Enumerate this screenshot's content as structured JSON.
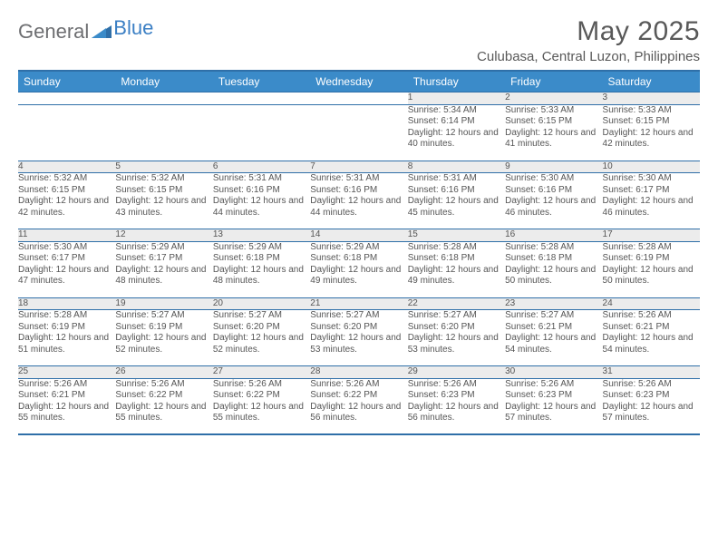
{
  "brand": {
    "text1": "General",
    "text2": "Blue"
  },
  "title": "May 2025",
  "location": "Culubasa, Central Luzon, Philippines",
  "colors": {
    "header_bg": "#3b8bc9",
    "header_text": "#ffffff",
    "border": "#2f6fa8",
    "daynum_bg": "#ececec",
    "body_text": "#555555",
    "brand_gray": "#6d6e71",
    "brand_blue": "#3b7fc4",
    "page_bg": "#ffffff"
  },
  "typography": {
    "title_fontsize": 30,
    "location_fontsize": 15,
    "header_fontsize": 12,
    "daynum_fontsize": 11,
    "cell_fontsize": 10
  },
  "daysOfWeek": [
    "Sunday",
    "Monday",
    "Tuesday",
    "Wednesday",
    "Thursday",
    "Friday",
    "Saturday"
  ],
  "weeks": [
    [
      null,
      null,
      null,
      null,
      {
        "n": "1",
        "sr": "5:34 AM",
        "ss": "6:14 PM",
        "dl": "12 hours and 40 minutes."
      },
      {
        "n": "2",
        "sr": "5:33 AM",
        "ss": "6:15 PM",
        "dl": "12 hours and 41 minutes."
      },
      {
        "n": "3",
        "sr": "5:33 AM",
        "ss": "6:15 PM",
        "dl": "12 hours and 42 minutes."
      }
    ],
    [
      {
        "n": "4",
        "sr": "5:32 AM",
        "ss": "6:15 PM",
        "dl": "12 hours and 42 minutes."
      },
      {
        "n": "5",
        "sr": "5:32 AM",
        "ss": "6:15 PM",
        "dl": "12 hours and 43 minutes."
      },
      {
        "n": "6",
        "sr": "5:31 AM",
        "ss": "6:16 PM",
        "dl": "12 hours and 44 minutes."
      },
      {
        "n": "7",
        "sr": "5:31 AM",
        "ss": "6:16 PM",
        "dl": "12 hours and 44 minutes."
      },
      {
        "n": "8",
        "sr": "5:31 AM",
        "ss": "6:16 PM",
        "dl": "12 hours and 45 minutes."
      },
      {
        "n": "9",
        "sr": "5:30 AM",
        "ss": "6:16 PM",
        "dl": "12 hours and 46 minutes."
      },
      {
        "n": "10",
        "sr": "5:30 AM",
        "ss": "6:17 PM",
        "dl": "12 hours and 46 minutes."
      }
    ],
    [
      {
        "n": "11",
        "sr": "5:30 AM",
        "ss": "6:17 PM",
        "dl": "12 hours and 47 minutes."
      },
      {
        "n": "12",
        "sr": "5:29 AM",
        "ss": "6:17 PM",
        "dl": "12 hours and 48 minutes."
      },
      {
        "n": "13",
        "sr": "5:29 AM",
        "ss": "6:18 PM",
        "dl": "12 hours and 48 minutes."
      },
      {
        "n": "14",
        "sr": "5:29 AM",
        "ss": "6:18 PM",
        "dl": "12 hours and 49 minutes."
      },
      {
        "n": "15",
        "sr": "5:28 AM",
        "ss": "6:18 PM",
        "dl": "12 hours and 49 minutes."
      },
      {
        "n": "16",
        "sr": "5:28 AM",
        "ss": "6:18 PM",
        "dl": "12 hours and 50 minutes."
      },
      {
        "n": "17",
        "sr": "5:28 AM",
        "ss": "6:19 PM",
        "dl": "12 hours and 50 minutes."
      }
    ],
    [
      {
        "n": "18",
        "sr": "5:28 AM",
        "ss": "6:19 PM",
        "dl": "12 hours and 51 minutes."
      },
      {
        "n": "19",
        "sr": "5:27 AM",
        "ss": "6:19 PM",
        "dl": "12 hours and 52 minutes."
      },
      {
        "n": "20",
        "sr": "5:27 AM",
        "ss": "6:20 PM",
        "dl": "12 hours and 52 minutes."
      },
      {
        "n": "21",
        "sr": "5:27 AM",
        "ss": "6:20 PM",
        "dl": "12 hours and 53 minutes."
      },
      {
        "n": "22",
        "sr": "5:27 AM",
        "ss": "6:20 PM",
        "dl": "12 hours and 53 minutes."
      },
      {
        "n": "23",
        "sr": "5:27 AM",
        "ss": "6:21 PM",
        "dl": "12 hours and 54 minutes."
      },
      {
        "n": "24",
        "sr": "5:26 AM",
        "ss": "6:21 PM",
        "dl": "12 hours and 54 minutes."
      }
    ],
    [
      {
        "n": "25",
        "sr": "5:26 AM",
        "ss": "6:21 PM",
        "dl": "12 hours and 55 minutes."
      },
      {
        "n": "26",
        "sr": "5:26 AM",
        "ss": "6:22 PM",
        "dl": "12 hours and 55 minutes."
      },
      {
        "n": "27",
        "sr": "5:26 AM",
        "ss": "6:22 PM",
        "dl": "12 hours and 55 minutes."
      },
      {
        "n": "28",
        "sr": "5:26 AM",
        "ss": "6:22 PM",
        "dl": "12 hours and 56 minutes."
      },
      {
        "n": "29",
        "sr": "5:26 AM",
        "ss": "6:23 PM",
        "dl": "12 hours and 56 minutes."
      },
      {
        "n": "30",
        "sr": "5:26 AM",
        "ss": "6:23 PM",
        "dl": "12 hours and 57 minutes."
      },
      {
        "n": "31",
        "sr": "5:26 AM",
        "ss": "6:23 PM",
        "dl": "12 hours and 57 minutes."
      }
    ]
  ],
  "labels": {
    "sunrise": "Sunrise:",
    "sunset": "Sunset:",
    "daylight": "Daylight:"
  }
}
